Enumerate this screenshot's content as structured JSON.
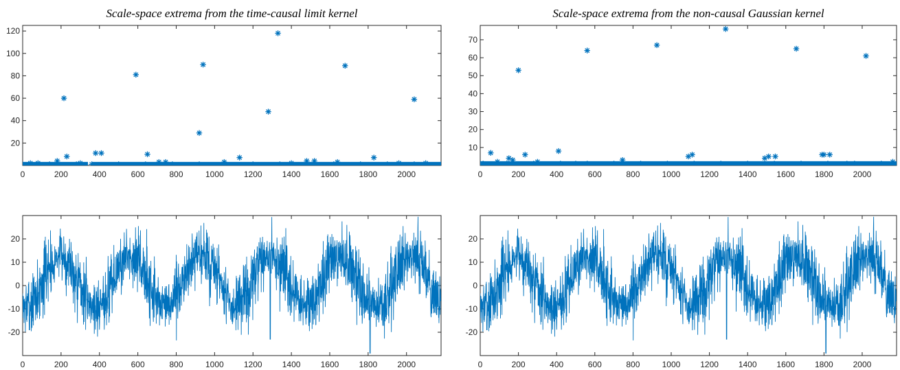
{
  "colors": {
    "series": "#0072BD",
    "axis": "#262626"
  },
  "chart_data": [
    {
      "id": "tl",
      "type": "scatter",
      "marker": "asterisk",
      "title": "Scale-space extrema from the time-causal limit kernel",
      "xlim": [
        0,
        2180
      ],
      "ylim": [
        0,
        125
      ],
      "xticks": [
        0,
        200,
        400,
        600,
        800,
        1000,
        1200,
        1400,
        1600,
        1800,
        2000
      ],
      "yticks": [
        20,
        40,
        60,
        80,
        100,
        120
      ],
      "points": [
        [
          215,
          60
        ],
        [
          230,
          8
        ],
        [
          180,
          4
        ],
        [
          380,
          11
        ],
        [
          410,
          11
        ],
        [
          590,
          81
        ],
        [
          650,
          10
        ],
        [
          710,
          3
        ],
        [
          745,
          3
        ],
        [
          920,
          29
        ],
        [
          940,
          90
        ],
        [
          1050,
          3
        ],
        [
          1130,
          7
        ],
        [
          1280,
          48
        ],
        [
          1330,
          118
        ],
        [
          1480,
          4
        ],
        [
          1520,
          4
        ],
        [
          1640,
          3
        ],
        [
          1680,
          89
        ],
        [
          1830,
          7
        ],
        [
          2040,
          59
        ],
        [
          40,
          2
        ],
        [
          80,
          2
        ],
        [
          300,
          2
        ],
        [
          1400,
          2
        ],
        [
          1960,
          2
        ],
        [
          2100,
          2
        ]
      ],
      "baseline": {
        "y": 1,
        "segments": [
          [
            0,
            340
          ],
          [
            360,
            2180
          ]
        ]
      }
    },
    {
      "id": "tr",
      "type": "scatter",
      "marker": "asterisk",
      "title": "Scale-space extrema from the non-causal Gaussian kernel",
      "xlim": [
        0,
        2180
      ],
      "ylim": [
        0,
        78
      ],
      "xticks": [
        0,
        200,
        400,
        600,
        800,
        1000,
        1200,
        1400,
        1600,
        1800,
        2000
      ],
      "yticks": [
        10,
        20,
        30,
        40,
        50,
        60,
        70
      ],
      "points": [
        [
          200,
          53
        ],
        [
          560,
          64
        ],
        [
          925,
          67
        ],
        [
          1285,
          76
        ],
        [
          1655,
          65
        ],
        [
          2020,
          61
        ],
        [
          55,
          7
        ],
        [
          150,
          4
        ],
        [
          170,
          3
        ],
        [
          235,
          6
        ],
        [
          300,
          2
        ],
        [
          410,
          8
        ],
        [
          745,
          3
        ],
        [
          1090,
          5
        ],
        [
          1110,
          6
        ],
        [
          1490,
          4
        ],
        [
          1510,
          5
        ],
        [
          1545,
          5
        ],
        [
          1790,
          6
        ],
        [
          1800,
          6
        ],
        [
          1830,
          6
        ],
        [
          15,
          1
        ],
        [
          90,
          2
        ],
        [
          500,
          1
        ],
        [
          1920,
          1
        ],
        [
          2160,
          2
        ]
      ],
      "baseline": {
        "y": 1,
        "segments": [
          [
            0,
            2180
          ]
        ]
      }
    },
    {
      "id": "bl",
      "type": "line",
      "title": "",
      "xlim": [
        0,
        2180
      ],
      "ylim": [
        -30,
        30
      ],
      "xticks": [
        0,
        200,
        400,
        600,
        800,
        1000,
        1200,
        1400,
        1600,
        1800,
        2000
      ],
      "yticks": [
        -20,
        -10,
        0,
        10,
        20
      ],
      "signal": {
        "period": 365,
        "phase_day": 15,
        "mean": 2,
        "amplitude": 11,
        "noise": 6,
        "length": 2180,
        "dips": [
          [
            1810,
            -29
          ],
          [
            1290,
            -23
          ],
          [
            35,
            -19
          ]
        ],
        "seed": 7
      }
    },
    {
      "id": "br",
      "type": "line",
      "title": "",
      "xlim": [
        0,
        2180
      ],
      "ylim": [
        -30,
        30
      ],
      "xticks": [
        0,
        200,
        400,
        600,
        800,
        1000,
        1200,
        1400,
        1600,
        1800,
        2000
      ],
      "yticks": [
        -20,
        -10,
        0,
        10,
        20
      ],
      "signal": {
        "period": 365,
        "phase_day": 15,
        "mean": 2,
        "amplitude": 11,
        "noise": 6,
        "length": 2180,
        "dips": [
          [
            1810,
            -29
          ],
          [
            1290,
            -23
          ],
          [
            35,
            -19
          ]
        ],
        "seed": 7
      }
    }
  ]
}
